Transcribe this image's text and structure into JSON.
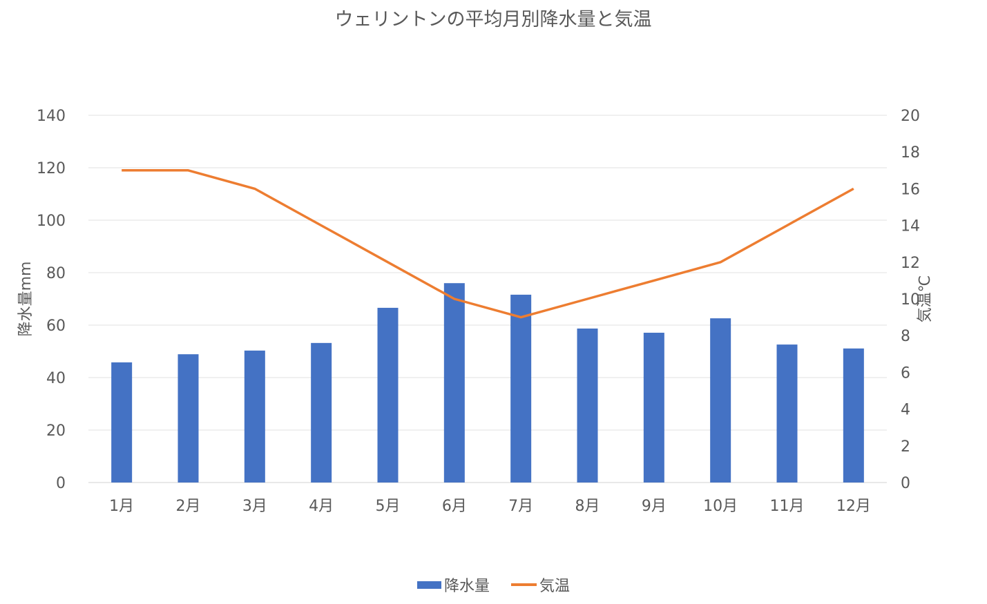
{
  "chart_data": {
    "type": "bar+line",
    "title": "ウェリントンの平均月別降水量と気温",
    "categories": [
      "1月",
      "2月",
      "3月",
      "4月",
      "5月",
      "6月",
      "7月",
      "8月",
      "9月",
      "10月",
      "11月",
      "12月"
    ],
    "series": [
      {
        "name": "降水量",
        "type": "bar",
        "axis": "left",
        "color": "#4472C4",
        "values": [
          45.8,
          48.9,
          50.3,
          53.2,
          66.6,
          76.0,
          71.6,
          58.7,
          57.1,
          62.6,
          52.6,
          51.1
        ]
      },
      {
        "name": "気温",
        "type": "line",
        "axis": "right",
        "color": "#ED7D31",
        "values": [
          17,
          17,
          16,
          14,
          12,
          10,
          9,
          10,
          11,
          12,
          14,
          16
        ]
      }
    ],
    "ylabel": "降水量mm",
    "ylabel_right": "気温℃",
    "ylim": [
      0,
      140
    ],
    "yticks": [
      0,
      20,
      40,
      60,
      80,
      100,
      120,
      140
    ],
    "ylim_right": [
      0,
      20
    ],
    "yticks_right": [
      0,
      2,
      4,
      6,
      8,
      10,
      12,
      14,
      16,
      18,
      20
    ],
    "grid": true,
    "legend_position": "bottom"
  }
}
